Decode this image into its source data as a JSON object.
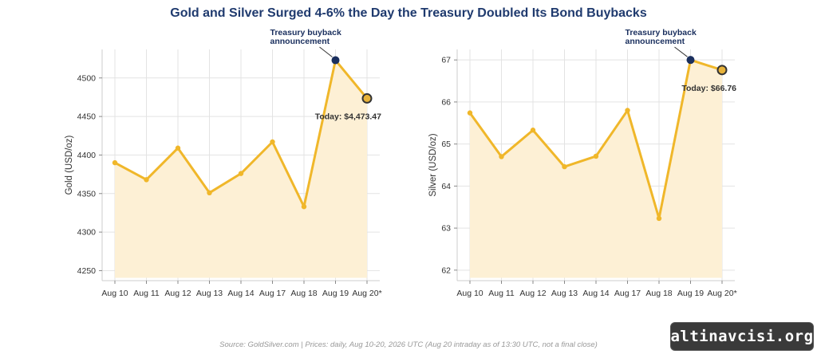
{
  "title": "Gold and Silver Surged 4-6% the Day the Treasury Doubled Its Bond Buybacks",
  "source": "Source: GoldSilver.com | Prices: daily, Aug 10-20, 2026 UTC (Aug 20 intraday as of 13:30 UTC, not a final close)",
  "watermark": "altinavcisi.org",
  "colors": {
    "title": "#1f3a6e",
    "line": "#f0b72a",
    "fill": "#fdf0d5",
    "highlight": "#1a2f5e",
    "today_fill": "#e7b23a",
    "grid": "#e3e3e3"
  },
  "chart_data": [
    {
      "type": "line",
      "categories": [
        "Aug 10",
        "Aug 11",
        "Aug 12",
        "Aug 13",
        "Aug 14",
        "Aug 17",
        "Aug 18",
        "Aug 19",
        "Aug 20*"
      ],
      "values": [
        4390,
        4368,
        4409,
        4351,
        4376,
        4417,
        4333,
        4523,
        4473.47
      ],
      "ylabel": "Gold (USD/oz)",
      "xlabel": "",
      "ylim": [
        4237,
        4537
      ],
      "yticks": [
        4250,
        4300,
        4350,
        4400,
        4450,
        4500
      ],
      "grid": true,
      "annotation": {
        "text_line1": "Treasury buyback",
        "text_line2": "announcement",
        "index": 7
      },
      "today_label": "Today: $4,473.47"
    },
    {
      "type": "line",
      "categories": [
        "Aug 10",
        "Aug 11",
        "Aug 12",
        "Aug 13",
        "Aug 14",
        "Aug 17",
        "Aug 18",
        "Aug 19",
        "Aug 20*"
      ],
      "values": [
        65.74,
        64.7,
        65.33,
        64.46,
        64.71,
        65.8,
        63.23,
        67.0,
        66.76
      ],
      "ylabel": "Silver (USD/oz)",
      "xlabel": "",
      "ylim": [
        61.75,
        67.25
      ],
      "yticks": [
        62,
        63,
        64,
        65,
        66,
        67
      ],
      "grid": true,
      "annotation": {
        "text_line1": "Treasury buyback",
        "text_line2": "announcement",
        "index": 7
      },
      "today_label": "Today: $66.76"
    }
  ]
}
